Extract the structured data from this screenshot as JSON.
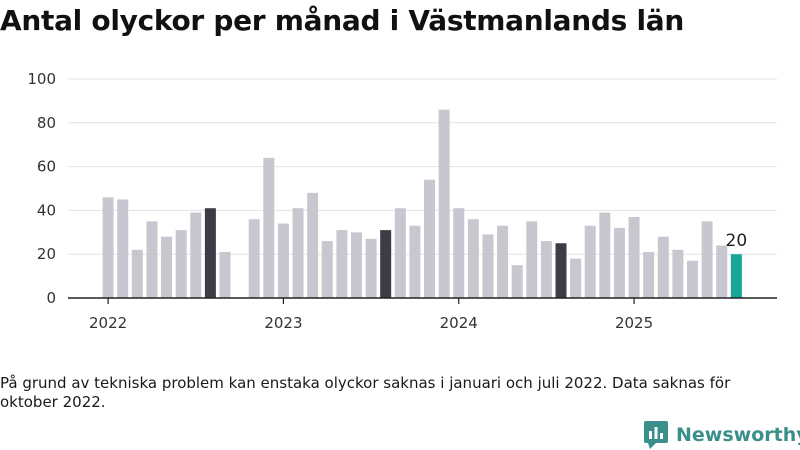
{
  "title": "Antal olyckor per månad i Västmanlands län",
  "footnote": "På grund av tekniska problem kan enstaka olyckor saknas i januari och juli 2022. Data saknas för oktober 2022.",
  "brand": {
    "name": "Newsworthy",
    "icon": "newsworthy-logo-icon",
    "color": "#3a8f8a"
  },
  "colors": {
    "bar": "#c8c7d0",
    "august": "#3c3c46",
    "latest": "#16a596",
    "grid": "#e3e3e3",
    "axis": "#222222"
  },
  "chart_data": {
    "type": "bar",
    "title": "Antal olyckor per månad i Västmanlands län",
    "xlabel": "",
    "ylabel": "",
    "ylim": [
      0,
      100
    ],
    "yticks": [
      0,
      20,
      40,
      60,
      80,
      100
    ],
    "xticks": [
      "2022",
      "2023",
      "2024",
      "2025"
    ],
    "grid": true,
    "start": "2022-01",
    "months": [
      "2022-01",
      "2022-02",
      "2022-03",
      "2022-04",
      "2022-05",
      "2022-06",
      "2022-07",
      "2022-08",
      "2022-09",
      "2022-10",
      "2022-11",
      "2022-12",
      "2023-01",
      "2023-02",
      "2023-03",
      "2023-04",
      "2023-05",
      "2023-06",
      "2023-07",
      "2023-08",
      "2023-09",
      "2023-10",
      "2023-11",
      "2023-12",
      "2024-01",
      "2024-02",
      "2024-03",
      "2024-04",
      "2024-05",
      "2024-06",
      "2024-07",
      "2024-08",
      "2024-09",
      "2024-10",
      "2024-11",
      "2024-12",
      "2025-01",
      "2025-02",
      "2025-03",
      "2025-04",
      "2025-05",
      "2025-06",
      "2025-07",
      "2025-08"
    ],
    "values": [
      46,
      45,
      22,
      35,
      28,
      31,
      39,
      41,
      21,
      null,
      36,
      64,
      34,
      41,
      48,
      26,
      31,
      30,
      27,
      31,
      41,
      33,
      54,
      86,
      41,
      36,
      29,
      33,
      15,
      35,
      26,
      25,
      18,
      33,
      39,
      32,
      37,
      21,
      28,
      22,
      17,
      35,
      24,
      20
    ],
    "highlighted": [
      "2022-08",
      "2023-08",
      "2024-08"
    ],
    "latest": "2025-08",
    "data_labels": [
      {
        "month": "2025-08",
        "text": "20"
      }
    ]
  }
}
